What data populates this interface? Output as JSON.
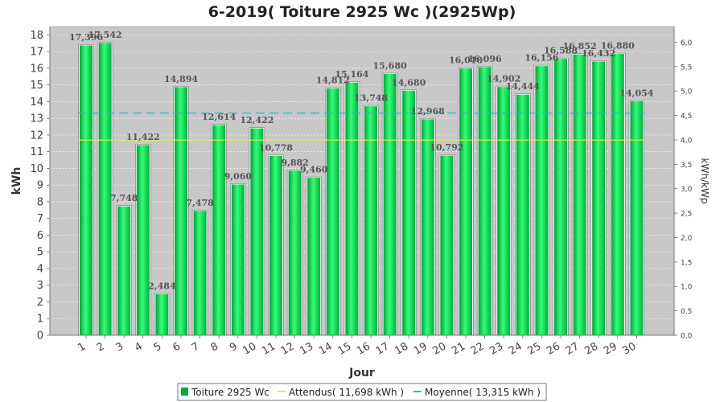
{
  "chart_data": {
    "type": "bar",
    "title": "6-2019( Toiture 2925 Wc )(2925Wp)",
    "xlabel": "Jour",
    "ylabel": "kWh",
    "y2label": "kWh/kWp",
    "ylim": [
      0,
      18.5
    ],
    "y2lim": [
      0,
      6.32
    ],
    "yticks": [
      "0",
      "1",
      "2",
      "3",
      "4",
      "5",
      "6",
      "7",
      "8",
      "9",
      "10",
      "11",
      "12",
      "13",
      "14",
      "15",
      "16",
      "17",
      "18"
    ],
    "y2ticks": [
      "0,0",
      "0,5",
      "1,0",
      "1,5",
      "2,0",
      "2,5",
      "3,0",
      "3,5",
      "4,0",
      "4,5",
      "5,0",
      "5,5",
      "6,0"
    ],
    "categories": [
      "1",
      "2",
      "3",
      "4",
      "5",
      "6",
      "7",
      "8",
      "9",
      "10",
      "11",
      "12",
      "13",
      "14",
      "15",
      "16",
      "17",
      "18",
      "19",
      "20",
      "21",
      "22",
      "23",
      "24",
      "25",
      "26",
      "27",
      "28",
      "29",
      "30"
    ],
    "series": [
      {
        "name": "Toiture 2925 Wc",
        "color": "#00cc44",
        "values": [
          17.396,
          17.542,
          7.748,
          11.422,
          2.484,
          14.894,
          7.478,
          12.614,
          9.06,
          12.422,
          10.778,
          9.882,
          9.46,
          14.812,
          15.164,
          13.748,
          15.68,
          14.68,
          12.968,
          10.792,
          16.01,
          16.096,
          14.902,
          14.444,
          16.156,
          16.588,
          16.852,
          16.432,
          16.88,
          14.054
        ],
        "labels": [
          "17,396",
          "17,542",
          "7,748",
          "11,422",
          "2,484",
          "14,894",
          "7,478",
          "12,614",
          "9,060",
          "12,422",
          "10,778",
          "9,882",
          "9,460",
          "14,812",
          "15,164",
          "13,748",
          "15,680",
          "14,680",
          "12,968",
          "10,792",
          "16,010",
          "16,096",
          "14,902",
          "14,444",
          "16,156",
          "16,588",
          "16,852",
          "16,432",
          "16,880",
          "14,054"
        ]
      }
    ],
    "reference_lines": [
      {
        "name": "Attendus( 11,698 kWh )",
        "value": 11.698,
        "color": "#e8e85a",
        "style": "solid"
      },
      {
        "name": "Moyenne( 13,315 kWh )",
        "value": 13.315,
        "color": "#2ab7c9",
        "style": "dashed"
      }
    ],
    "legend": {
      "position": "bottom",
      "items": [
        {
          "label": "Toiture 2925 Wc",
          "marker": "square",
          "color": "#00aa44"
        },
        {
          "label": "Attendus( 11,698 kWh )",
          "marker": "line",
          "color": "#e8e85a"
        },
        {
          "label": "Moyenne( 13,315 kWh )",
          "marker": "line",
          "color": "#2ab7c9"
        }
      ]
    },
    "grid": true,
    "plot_background": "#c8c8c8"
  }
}
